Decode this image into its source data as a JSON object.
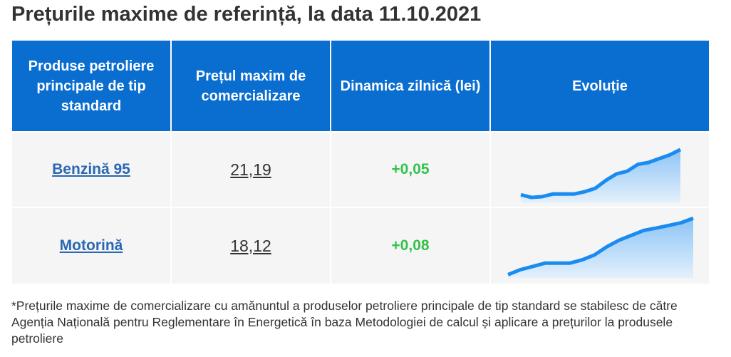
{
  "title": "Prețurile maxime de referință, la data 11.10.2021",
  "table": {
    "headers": [
      "Produse petroliere principale de tip standard",
      "Prețul maxim de comercializare",
      "Dinamica zilnică (lei)",
      "Evoluție"
    ],
    "rows": [
      {
        "product": "Benzină 95",
        "price": "21,19",
        "change": "+0,05",
        "sparkline": {
          "values": [
            20.0,
            19.93,
            19.95,
            20.02,
            20.02,
            20.02,
            20.08,
            20.17,
            20.38,
            20.55,
            20.62,
            20.8,
            20.85,
            20.95,
            21.05,
            21.19
          ],
          "ylim": [
            19.8,
            21.3
          ]
        }
      },
      {
        "product": "Motorină",
        "price": "18,12",
        "change": "+0,08",
        "sparkline": {
          "values": [
            16.4,
            16.55,
            16.65,
            16.75,
            16.75,
            16.75,
            16.85,
            17.0,
            17.25,
            17.45,
            17.6,
            17.75,
            17.82,
            17.9,
            17.98,
            18.12
          ],
          "ylim": [
            16.3,
            18.3
          ]
        }
      }
    ]
  },
  "footnote": "*Prețurile maxime de comercializare cu amănuntul a produselor petroliere principale de tip standard se stabilesc de către Agenția Națională pentru Reglementare în Energetică în baza Metodologiei de calcul și aplicare a prețurilor la produsele petroliere"
}
